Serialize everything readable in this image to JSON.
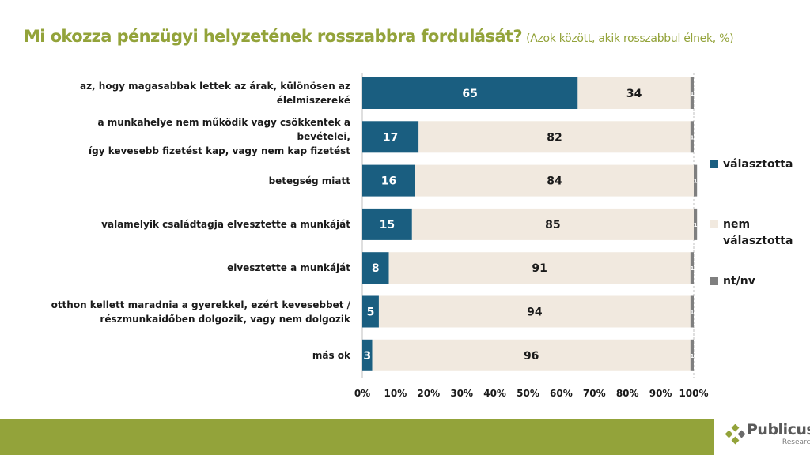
{
  "chart_data": {
    "type": "bar",
    "orientation": "horizontal-stacked-100",
    "title": "Mi okozza pénzügyi helyzetének rosszabbra fordulását?",
    "subtitle": "(Azok között, akik rosszabbul élnek, %)",
    "categories": [
      "az, hogy magasabbak lettek az árak, különösen az élelmiszereké",
      "a munkahelye nem működik vagy csökkentek a bevételei, így kevesebb fizetést kap, vagy nem kap fizetést",
      "betegség miatt",
      "valamelyik családtagja elvesztette a munkáját",
      "elvesztette a munkáját",
      "otthon kellett maradnia a gyerekkel, ezért kevesebbet / részmunkaidőben dolgozik, vagy nem dolgozik",
      "más ok"
    ],
    "category_lines": [
      [
        "az, hogy magasabbak lettek az árak, különösen az",
        "élelmiszereké"
      ],
      [
        "a munkahelye nem működik vagy csökkentek a bevételei,",
        "így kevesebb fizetést kap, vagy nem kap fizetést"
      ],
      [
        "betegség miatt"
      ],
      [
        "valamelyik családtagja elvesztette a munkáját"
      ],
      [
        "elvesztette a munkáját"
      ],
      [
        "otthon kellett maradnia a gyerekkel, ezért kevesebbet /",
        "részmunkaidőben dolgozik, vagy nem dolgozik"
      ],
      [
        "más ok"
      ]
    ],
    "series": [
      {
        "name": "választotta",
        "color": "#1a5e80",
        "values": [
          65,
          17,
          16,
          15,
          8,
          5,
          3
        ]
      },
      {
        "name": "nem választotta",
        "color": "#f1e9df",
        "values": [
          34,
          82,
          84,
          85,
          91,
          94,
          96
        ]
      },
      {
        "name": "nt/nv",
        "color": "#7f7f7f",
        "values": [
          1,
          1,
          1,
          1,
          1,
          1,
          1
        ]
      }
    ],
    "xlim": [
      0,
      100
    ],
    "xticks": [
      "0%",
      "10%",
      "20%",
      "30%",
      "40%",
      "50%",
      "60%",
      "70%",
      "80%",
      "90%",
      "100%"
    ],
    "legend_position": "right",
    "legend_lines": [
      [
        "választotta"
      ],
      [
        "nem",
        "választotta"
      ],
      [
        "nt/nv"
      ]
    ]
  },
  "logo": {
    "name": "Publicus",
    "sub": "Research"
  }
}
